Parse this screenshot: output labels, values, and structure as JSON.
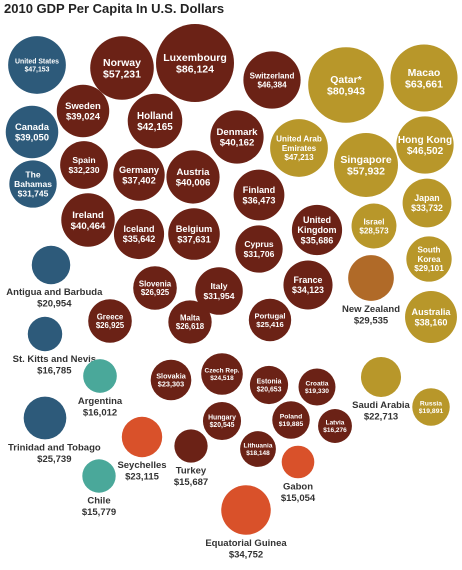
{
  "chart_data": {
    "type": "bubble",
    "title": "2010 GDP Per Capita In U.S. Dollars",
    "unit": "U.S. Dollars",
    "colors": {
      "north_america": "#2d5a7a",
      "europe": "#6b2216",
      "asia_middle_east_oceania": "#b8972a",
      "new_zealand": "#b06a28",
      "latin_america_caribbean": "#4aa89a",
      "africa": "#d9512a"
    },
    "data": [
      {
        "country": "United States",
        "value": 47153,
        "display": "$47,153",
        "group": "north_america"
      },
      {
        "country": "Canada",
        "value": 39050,
        "display": "$39,050",
        "group": "north_america"
      },
      {
        "country": "The Bahamas",
        "value": 31745,
        "display": "$31,745",
        "group": "north_america"
      },
      {
        "country": "Antigua and Barbuda",
        "value": 20954,
        "display": "$20,954",
        "group": "north_america"
      },
      {
        "country": "St. Kitts and Nevis",
        "value": 16785,
        "display": "$16,785",
        "group": "north_america"
      },
      {
        "country": "Trinidad and Tobago",
        "value": 25739,
        "display": "$25,739",
        "group": "north_america"
      },
      {
        "country": "Argentina",
        "value": 16012,
        "display": "$16,012",
        "group": "latin_america_caribbean"
      },
      {
        "country": "Chile",
        "value": 15779,
        "display": "$15,779",
        "group": "latin_america_caribbean"
      },
      {
        "country": "Norway",
        "value": 57231,
        "display": "$57,231",
        "group": "europe"
      },
      {
        "country": "Luxembourg",
        "value": 86124,
        "display": "$86,124",
        "group": "europe"
      },
      {
        "country": "Switzerland",
        "value": 46384,
        "display": "$46,384",
        "group": "europe"
      },
      {
        "country": "Sweden",
        "value": 39024,
        "display": "$39,024",
        "group": "europe"
      },
      {
        "country": "Holland",
        "value": 42165,
        "display": "$42,165",
        "group": "europe"
      },
      {
        "country": "Denmark",
        "value": 40162,
        "display": "$40,162",
        "group": "europe"
      },
      {
        "country": "Spain",
        "value": 32230,
        "display": "$32,230",
        "group": "europe"
      },
      {
        "country": "Germany",
        "value": 37402,
        "display": "$37,402",
        "group": "europe"
      },
      {
        "country": "Austria",
        "value": 40006,
        "display": "$40,006",
        "group": "europe"
      },
      {
        "country": "Finland",
        "value": 36473,
        "display": "$36,473",
        "group": "europe"
      },
      {
        "country": "Ireland",
        "value": 40464,
        "display": "$40,464",
        "group": "europe"
      },
      {
        "country": "Iceland",
        "value": 35642,
        "display": "$35,642",
        "group": "europe"
      },
      {
        "country": "Belgium",
        "value": 37631,
        "display": "$37,631",
        "group": "europe"
      },
      {
        "country": "Cyprus",
        "value": 31706,
        "display": "$31,706",
        "group": "europe"
      },
      {
        "country": "United Kingdom",
        "value": 35686,
        "display": "$35,686",
        "group": "europe"
      },
      {
        "country": "Slovenia",
        "value": 26925,
        "display": "$26,925",
        "group": "europe"
      },
      {
        "country": "Italy",
        "value": 31954,
        "display": "$31,954",
        "group": "europe"
      },
      {
        "country": "France",
        "value": 34123,
        "display": "$34,123",
        "group": "europe"
      },
      {
        "country": "Greece",
        "value": 26925,
        "display": "$26,925",
        "group": "europe"
      },
      {
        "country": "Malta",
        "value": 26618,
        "display": "$26,618",
        "group": "europe"
      },
      {
        "country": "Portugal",
        "value": 25416,
        "display": "$25,416",
        "group": "europe"
      },
      {
        "country": "Slovakia",
        "value": 23303,
        "display": "$23,303",
        "group": "europe"
      },
      {
        "country": "Czech Rep.",
        "value": 24518,
        "display": "$24,518",
        "group": "europe"
      },
      {
        "country": "Estonia",
        "value": 20653,
        "display": "$20,653",
        "group": "europe"
      },
      {
        "country": "Croatia",
        "value": 19330,
        "display": "$19,330",
        "group": "europe"
      },
      {
        "country": "Hungary",
        "value": 20545,
        "display": "$20,545",
        "group": "europe"
      },
      {
        "country": "Poland",
        "value": 19885,
        "display": "$19,885",
        "group": "europe"
      },
      {
        "country": "Latvia",
        "value": 16276,
        "display": "$16,276",
        "group": "europe"
      },
      {
        "country": "Lithuania",
        "value": 18148,
        "display": "$18,148",
        "group": "europe"
      },
      {
        "country": "Turkey",
        "value": 15687,
        "display": "$15,687",
        "group": "europe"
      },
      {
        "country": "Qatar*",
        "value": 80943,
        "display": "$80,943",
        "group": "asia_middle_east_oceania"
      },
      {
        "country": "Macao",
        "value": 63661,
        "display": "$63,661",
        "group": "asia_middle_east_oceania"
      },
      {
        "country": "United Arab Emirates",
        "value": 47213,
        "display": "$47,213",
        "group": "asia_middle_east_oceania"
      },
      {
        "country": "Hong Kong",
        "value": 46502,
        "display": "$46,502",
        "group": "asia_middle_east_oceania"
      },
      {
        "country": "Singapore",
        "value": 57932,
        "display": "$57,932",
        "group": "asia_middle_east_oceania"
      },
      {
        "country": "Japan",
        "value": 33732,
        "display": "$33,732",
        "group": "asia_middle_east_oceania"
      },
      {
        "country": "Israel",
        "value": 28573,
        "display": "$28,573",
        "group": "asia_middle_east_oceania"
      },
      {
        "country": "South Korea",
        "value": 29101,
        "display": "$29,101",
        "group": "asia_middle_east_oceania"
      },
      {
        "country": "Australia",
        "value": 38160,
        "display": "$38,160",
        "group": "asia_middle_east_oceania"
      },
      {
        "country": "Saudi Arabia",
        "value": 22713,
        "display": "$22,713",
        "group": "asia_middle_east_oceania"
      },
      {
        "country": "Russia",
        "value": 19891,
        "display": "$19,891",
        "group": "asia_middle_east_oceania"
      },
      {
        "country": "New Zealand",
        "value": 29535,
        "display": "$29,535",
        "group": "new_zealand"
      },
      {
        "country": "Seychelles",
        "value": 23115,
        "display": "$23,115",
        "group": "africa"
      },
      {
        "country": "Gabon",
        "value": 15054,
        "display": "$15,054",
        "group": "africa"
      },
      {
        "country": "Equatorial Guinea",
        "value": 34752,
        "display": "$34,752",
        "group": "africa"
      }
    ]
  }
}
